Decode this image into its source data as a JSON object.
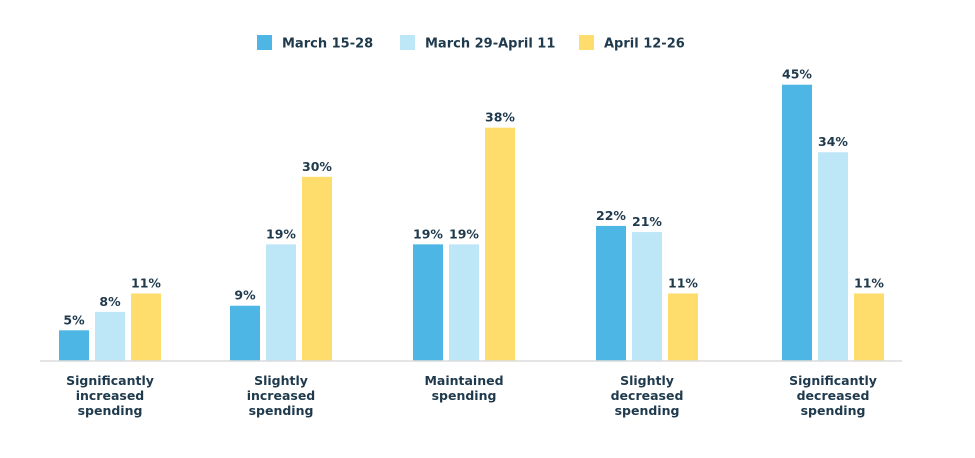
{
  "chart_data": {
    "type": "bar",
    "categories": [
      [
        "Significantly",
        "increased",
        "spending"
      ],
      [
        "Slightly",
        "increased",
        "spending"
      ],
      [
        "Maintained",
        "spending"
      ],
      [
        "Slightly",
        "decreased",
        "spending"
      ],
      [
        "Significantly",
        "decreased",
        "spending"
      ]
    ],
    "series": [
      {
        "name": "March 15-28",
        "color": "#4db6e5",
        "values": [
          5,
          9,
          19,
          22,
          45
        ],
        "labels": [
          "5%",
          "9%",
          "19%",
          "22%",
          "45%"
        ]
      },
      {
        "name": "March 29-April 11",
        "color": "#bde6f7",
        "values": [
          8,
          19,
          19,
          21,
          34
        ],
        "labels": [
          "8%",
          "19%",
          "19%",
          "21%",
          "34%"
        ]
      },
      {
        "name": "April 12-26",
        "color": "#fedd6c",
        "values": [
          11,
          30,
          38,
          11,
          11
        ],
        "labels": [
          "11%",
          "30%",
          "38%",
          "11%",
          "11%"
        ]
      }
    ],
    "ylim": [
      0,
      45
    ],
    "grid": false,
    "legend_position": "top"
  }
}
